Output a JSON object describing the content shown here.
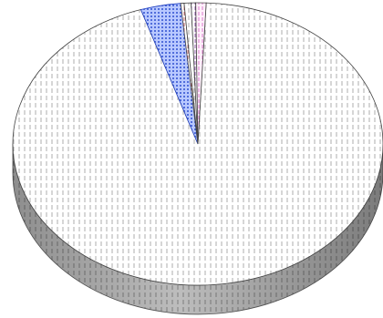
{
  "chart_data": {
    "type": "pie",
    "style": "3d",
    "legend": "none",
    "title": "",
    "slices": [
      {
        "value": 94.3,
        "color": "#ffffff",
        "pattern": "dashes-grey"
      },
      {
        "value": 3.5,
        "color": "#7090f0",
        "pattern": "dots-blue"
      },
      {
        "value": 0.3,
        "color": "#e09090",
        "pattern": "dashes-red"
      },
      {
        "value": 0.6,
        "color": "#ffffff",
        "pattern": "dashes-grey"
      },
      {
        "value": 0.4,
        "color": "#a070c0",
        "pattern": "dashes-purple"
      },
      {
        "value": 0.9,
        "color": "#f0a0e0",
        "pattern": "dashes-pink"
      }
    ]
  }
}
